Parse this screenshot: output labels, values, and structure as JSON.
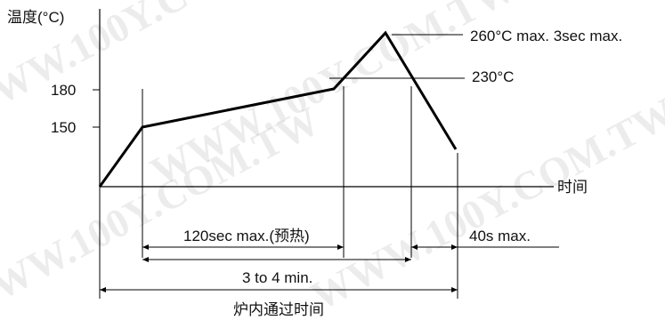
{
  "diagram": {
    "y_axis_label": "温度(°C)",
    "x_axis_label": "时间",
    "y_ticks": [
      "180",
      "150"
    ],
    "peak_annotation": "260°C max. 3sec max.",
    "level_annotation": "230°C",
    "preheat_label": "120sec max.(预热)",
    "above_230_label": "40s max.",
    "total_preheat_label": "3 to 4 min.",
    "total_label": "炉内通过时间",
    "watermark": "WWW.100Y.COM.TW"
  }
}
